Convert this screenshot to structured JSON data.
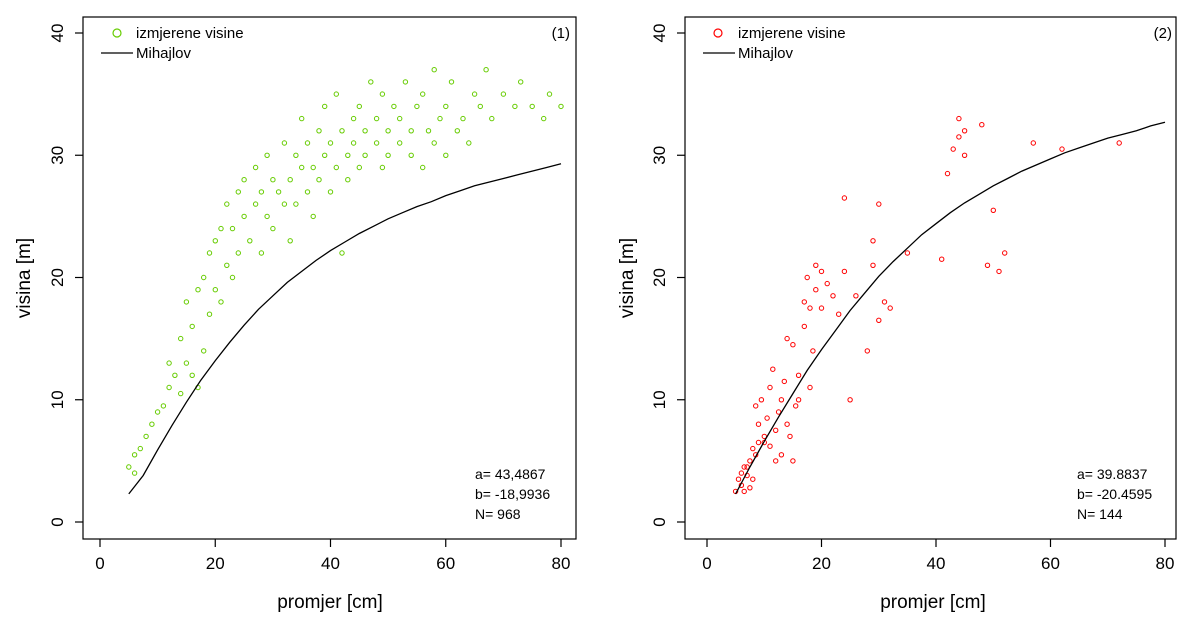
{
  "figure": {
    "panels": [
      {
        "panel_label": "(1)",
        "legend": {
          "points_label": "izmjerene visine",
          "curve_label": "Mihajlov"
        },
        "stats": [
          "a=  43,4867",
          "b= -18,9936",
          "N=  968"
        ],
        "point_color": "#66cc00"
      },
      {
        "panel_label": "(2)",
        "legend": {
          "points_label": "izmjerene visine",
          "curve_label": "Mihajlov"
        },
        "stats": [
          "a=  39.8837",
          "b= -20.4595",
          "N= 144"
        ],
        "point_color": "#ff0000"
      }
    ]
  },
  "chart_data": [
    {
      "type": "scatter",
      "title": "",
      "xlabel": "promjer [cm]",
      "ylabel": "visina [m]",
      "xlim": [
        0,
        80
      ],
      "ylim": [
        0,
        40
      ],
      "xticks": [
        0,
        20,
        40,
        60,
        80
      ],
      "yticks": [
        0,
        10,
        20,
        30,
        40
      ],
      "grid": false,
      "legend_position": "top-left",
      "series": [
        {
          "name": "izmjerene visine",
          "kind": "points",
          "marker": "open-circle",
          "color": "#66cc00",
          "count": 968,
          "x": [
            5,
            6,
            6,
            7,
            8,
            9,
            10,
            11,
            12,
            12,
            13,
            14,
            14,
            15,
            15,
            16,
            16,
            17,
            17,
            18,
            18,
            19,
            19,
            20,
            20,
            21,
            21,
            22,
            22,
            23,
            23,
            24,
            24,
            25,
            25,
            26,
            27,
            27,
            28,
            28,
            29,
            29,
            30,
            30,
            31,
            32,
            32,
            33,
            33,
            34,
            34,
            35,
            35,
            36,
            36,
            37,
            37,
            38,
            38,
            39,
            39,
            40,
            40,
            41,
            41,
            42,
            42,
            43,
            43,
            44,
            44,
            45,
            45,
            46,
            46,
            47,
            48,
            48,
            49,
            49,
            50,
            50,
            51,
            52,
            52,
            53,
            54,
            54,
            55,
            56,
            56,
            57,
            58,
            58,
            59,
            60,
            60,
            61,
            62,
            63,
            64,
            65,
            66,
            67,
            68,
            70,
            72,
            73,
            75,
            77,
            78,
            80
          ],
          "y": [
            4.5,
            5.5,
            4,
            6,
            7,
            8,
            9,
            9.5,
            11,
            13,
            12,
            10.5,
            15,
            13,
            18,
            12,
            16,
            19,
            11,
            20,
            14,
            22,
            17,
            23,
            19,
            24,
            18,
            21,
            26,
            20,
            24,
            27,
            22,
            25,
            28,
            23,
            26,
            29,
            22,
            27,
            25,
            30,
            28,
            24,
            27,
            26,
            31,
            28,
            23,
            30,
            26,
            29,
            33,
            27,
            31,
            29,
            25,
            32,
            28,
            30,
            34,
            27,
            31,
            29,
            35,
            22,
            32,
            30,
            28,
            33,
            31,
            29,
            34,
            32,
            30,
            36,
            31,
            33,
            29,
            35,
            32,
            30,
            34,
            31,
            33,
            36,
            30,
            32,
            34,
            29,
            35,
            32,
            31,
            37,
            33,
            30,
            34,
            36,
            32,
            33,
            31,
            35,
            34,
            37,
            33,
            35,
            34,
            36,
            34,
            33,
            35,
            34
          ]
        },
        {
          "name": "Mihajlov",
          "kind": "curve",
          "color": "#000000",
          "x": [
            5,
            7.5,
            10,
            12.5,
            15,
            17.5,
            20,
            22.5,
            25,
            27.5,
            30,
            32.5,
            35,
            37.5,
            40,
            42.5,
            45,
            47.5,
            50,
            52.5,
            55,
            57.5,
            60,
            62.5,
            65,
            67.5,
            70,
            72.5,
            75,
            77.5,
            80
          ],
          "y": [
            2.3,
            3.8,
            5.9,
            7.9,
            9.8,
            11.6,
            13.2,
            14.7,
            16.1,
            17.4,
            18.5,
            19.6,
            20.5,
            21.4,
            22.2,
            22.9,
            23.6,
            24.2,
            24.8,
            25.3,
            25.8,
            26.2,
            26.7,
            27.1,
            27.5,
            27.8,
            28.1,
            28.4,
            28.7,
            29.0,
            29.3
          ]
        }
      ]
    },
    {
      "type": "scatter",
      "title": "",
      "xlabel": "promjer [cm]",
      "ylabel": "visina [m]",
      "xlim": [
        0,
        80
      ],
      "ylim": [
        0,
        40
      ],
      "xticks": [
        0,
        20,
        40,
        60,
        80
      ],
      "yticks": [
        0,
        10,
        20,
        30,
        40
      ],
      "grid": false,
      "legend_position": "top-left",
      "series": [
        {
          "name": "izmjerene visine",
          "kind": "points",
          "marker": "open-circle",
          "color": "#ff0000",
          "count": 144,
          "x": [
            5,
            5.5,
            6,
            6,
            6.5,
            6.5,
            7,
            7,
            7.5,
            7.5,
            8,
            8,
            8.5,
            8.5,
            9,
            9,
            9.5,
            10,
            10,
            10.5,
            11,
            11,
            11.5,
            12,
            12,
            12.5,
            13,
            13,
            13.5,
            14,
            14,
            14.5,
            15,
            15,
            15.5,
            16,
            16,
            17,
            17,
            17.5,
            18,
            18,
            18.5,
            19,
            19,
            20,
            20,
            21,
            22,
            23,
            24,
            24,
            25,
            26,
            28,
            29,
            29,
            30,
            30,
            31,
            32,
            35,
            41,
            42,
            43,
            44,
            44,
            45,
            45,
            48,
            49,
            50,
            51,
            52,
            57,
            62,
            72
          ],
          "y": [
            2.5,
            3.5,
            4,
            3,
            4.5,
            2.5,
            3.8,
            4.5,
            5,
            2.8,
            3.5,
            6,
            5.5,
            9.5,
            6.5,
            8,
            10,
            7,
            6.5,
            8.5,
            6.2,
            11,
            12.5,
            5,
            7.5,
            9,
            5.5,
            10,
            11.5,
            8,
            15,
            7,
            5,
            14.5,
            9.5,
            10,
            12,
            16,
            18,
            20,
            17.5,
            11,
            14,
            19,
            21,
            17.5,
            20.5,
            19.5,
            18.5,
            17,
            20.5,
            26.5,
            10,
            18.5,
            14,
            21,
            23,
            16.5,
            26,
            18,
            17.5,
            22,
            21.5,
            28.5,
            30.5,
            31.5,
            33,
            30,
            32,
            32.5,
            21,
            25.5,
            20.5,
            22,
            31,
            30.5,
            31
          ]
        },
        {
          "name": "Mihajlov",
          "kind": "curve",
          "color": "#000000",
          "x": [
            5,
            7.5,
            10,
            12.5,
            15,
            17.5,
            20,
            22.5,
            25,
            27.5,
            30,
            32.5,
            35,
            37.5,
            40,
            42.5,
            45,
            47.5,
            50,
            52.5,
            55,
            57.5,
            60,
            62.5,
            65,
            67.5,
            70,
            72.5,
            75,
            77.5,
            80
          ],
          "y": [
            2.3,
            4.5,
            6.6,
            8.6,
            10.5,
            12.4,
            14.1,
            15.7,
            17.3,
            18.7,
            20.1,
            21.3,
            22.4,
            23.5,
            24.4,
            25.3,
            26.1,
            26.8,
            27.5,
            28.1,
            28.7,
            29.2,
            29.7,
            30.2,
            30.6,
            31.0,
            31.4,
            31.7,
            32.0,
            32.4,
            32.7
          ]
        }
      ]
    }
  ]
}
